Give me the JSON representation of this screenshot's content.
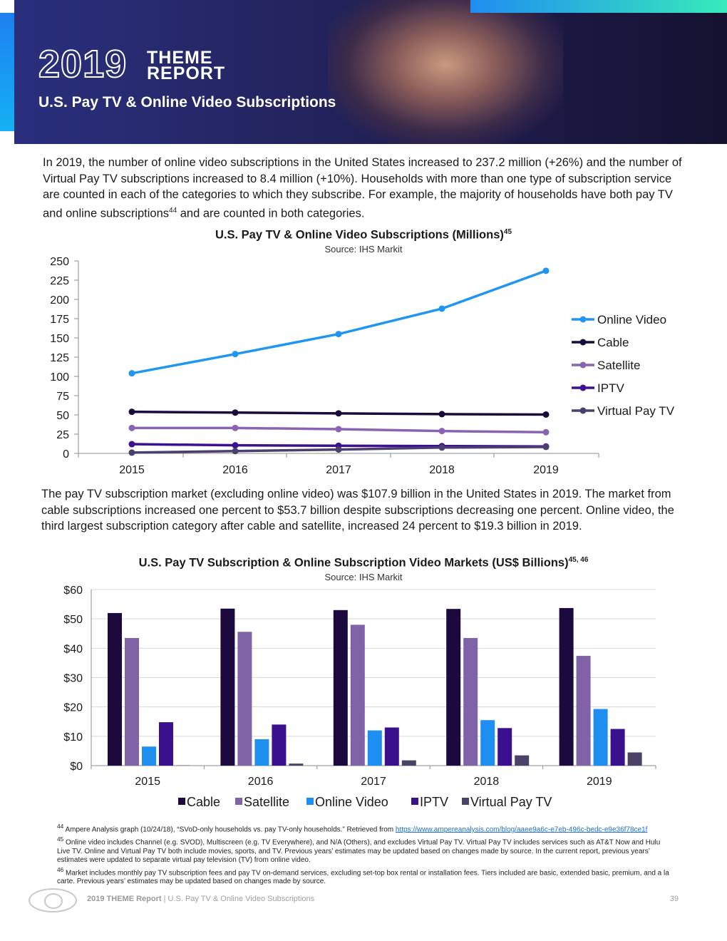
{
  "header": {
    "brand_year": "2019",
    "brand_word_1": "THEME",
    "brand_word_2": "REPORT",
    "title": "U.S. Pay TV & Online Video Subscriptions"
  },
  "intro_paragraph": "In 2019, the number of online video subscriptions in the United States increased to 237.2 million (+26%) and the number of Virtual Pay TV subscriptions increased to 8.4 million (+10%). Households with more than one type of subscription service are counted in each of the categories to which they subscribe. For example, the majority of households have both pay TV and online subscriptions",
  "intro_ref": "44",
  "intro_tail": " and are counted in both categories.",
  "line_chart_title": "U.S. Pay TV & Online Video Subscriptions (Millions)",
  "line_chart_ref": "45",
  "line_chart_source": "Source: IHS Markit",
  "middle_paragraph": "The pay TV subscription market (excluding online video) was $107.9 billion in the United States in 2019. The market from cable subscriptions increased one percent to $53.7 billion despite subscriptions decreasing one percent. Online video, the third largest subscription category after cable and satellite, increased 24 percent to $19.3 billion in 2019.",
  "bar_chart_title": "U.S. Pay TV Subscription & Online Subscription Video Markets (US$ Billions)",
  "bar_chart_ref": "45, 46",
  "bar_chart_source": "Source: IHS Markit",
  "chart_data": [
    {
      "type": "line",
      "title": "U.S. Pay TV & Online Video Subscriptions (Millions)",
      "x": [
        "2015",
        "2016",
        "2017",
        "2018",
        "2019"
      ],
      "ylim": [
        0,
        250
      ],
      "yticks": [
        0,
        25,
        50,
        75,
        100,
        125,
        150,
        175,
        200,
        225,
        250
      ],
      "grid": false,
      "legend": "right",
      "series": [
        {
          "name": "Online Video",
          "color": "#2196f0",
          "values": [
            104,
            129,
            155,
            188,
            237.2
          ]
        },
        {
          "name": "Cable",
          "color": "#1a0b3d",
          "values": [
            54,
            53,
            52,
            51,
            50.5
          ]
        },
        {
          "name": "Satellite",
          "color": "#8a64b0",
          "values": [
            33,
            33,
            31.5,
            29,
            27.5
          ]
        },
        {
          "name": "IPTV",
          "color": "#3d1092",
          "values": [
            12,
            10.5,
            10,
            9.5,
            9
          ]
        },
        {
          "name": "Virtual Pay TV",
          "color": "#4a3f6e",
          "values": [
            1,
            3,
            5,
            7.6,
            8.4
          ]
        }
      ]
    },
    {
      "type": "bar",
      "title": "U.S. Pay TV Subscription & Online Subscription Video Markets (US$ Billions)",
      "categories": [
        "2015",
        "2016",
        "2017",
        "2018",
        "2019"
      ],
      "ylim": [
        0,
        60
      ],
      "yticks": [
        "$0",
        "$10",
        "$20",
        "$30",
        "$40",
        "$50",
        "$60"
      ],
      "grid": true,
      "legend": "bottom",
      "series": [
        {
          "name": "Cable",
          "color": "#1c0a3f",
          "values": [
            52.0,
            53.5,
            53.0,
            53.4,
            53.7
          ]
        },
        {
          "name": "Satellite",
          "color": "#8063a6",
          "values": [
            43.5,
            45.6,
            48.0,
            43.5,
            37.4
          ]
        },
        {
          "name": "Online Video",
          "color": "#1e8ff0",
          "values": [
            6.5,
            9.0,
            12.0,
            15.5,
            19.3
          ]
        },
        {
          "name": "IPTV",
          "color": "#3a108e",
          "values": [
            14.8,
            14.0,
            13.0,
            12.8,
            12.5
          ]
        },
        {
          "name": "Virtual Pay TV",
          "color": "#4b4266",
          "values": [
            0.1,
            0.7,
            1.8,
            3.5,
            4.5
          ]
        }
      ]
    }
  ],
  "footnotes": {
    "fn44_num": "44",
    "fn44_text": " Ampere Analysis graph (10/24/18), “SVoD-only households vs. pay TV-only households.” Retrieved from ",
    "fn44_link": "https://www.ampereanalysis.com/blog/aaee9a6c-e7eb-496c-bedc-e9e36f78ce1f",
    "fn45_num": "45",
    "fn45_text": " Online video includes Channel (e.g. SVOD), Multiscreen (e.g. TV Everywhere), and N/A (Others), and excludes Virtual Pay TV. Virtual Pay TV includes services such as AT&T Now and Hulu Live TV. Online and Virtual Pay TV both include movies, sports, and TV. Previous years’ estimates may be updated based on changes made by source. In the current report, previous years’ estimates were updated to separate virtual pay television (TV)  from online video.",
    "fn46_num": "46",
    "fn46_text": " Market includes monthly pay TV subscription fees and pay TV on-demand services, excluding set-top box rental or installation fees. Tiers included are basic, extended basic, premium, and a la carte. Previous years’ estimates may be updated based on changes made by source."
  },
  "footer": {
    "report_label": "2019 THEME Report",
    "separator": " | ",
    "section": "U.S. Pay TV & Online Video Subscriptions",
    "page": "39"
  }
}
